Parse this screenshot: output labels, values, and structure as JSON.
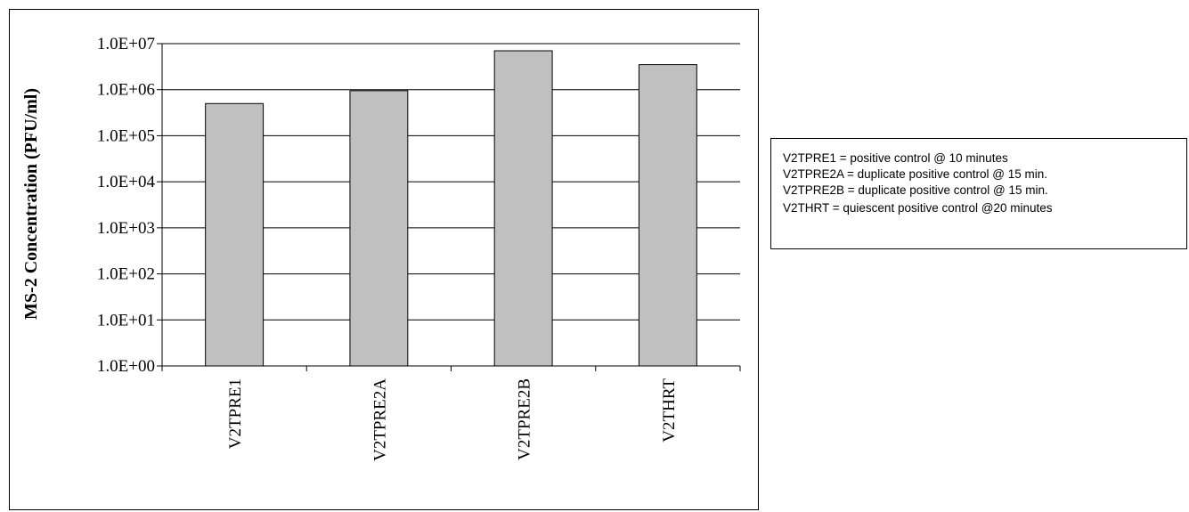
{
  "chart_data": {
    "type": "bar",
    "scale": "log",
    "categories": [
      "V2TPRE1",
      "V2TPRE2A",
      "V2TPRE2B",
      "V2THRT"
    ],
    "values": [
      500000,
      950000,
      7000000,
      3500000
    ],
    "ylabel": "MS-2 Concentration (PFU/ml)",
    "ylim": [
      1,
      10000000
    ],
    "y_ticks": [
      "1.0E+00",
      "1.0E+01",
      "1.0E+02",
      "1.0E+03",
      "1.0E+04",
      "1.0E+05",
      "1.0E+06",
      "1.0E+07"
    ],
    "grid": true,
    "bar_color": "#c0c0c0",
    "legend_notes": [
      "V2TPRE1 = positive control @ 10 minutes",
      "V2TPRE2A = duplicate positive control @ 15 min.",
      "V2TPRE2B = duplicate positive control @ 15 min.",
      "V2THRT = quiescent positive control @20 minutes"
    ]
  }
}
